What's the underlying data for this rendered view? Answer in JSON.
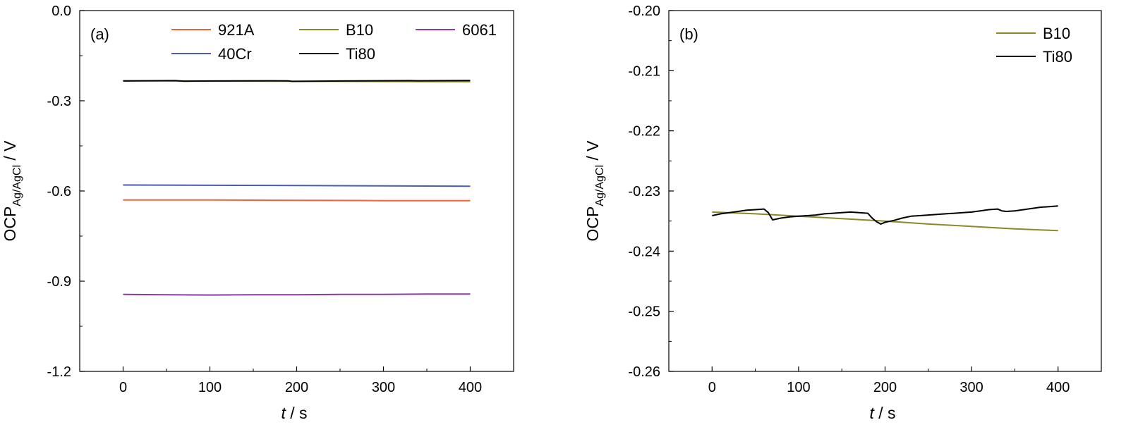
{
  "chart_data": [
    {
      "type": "line",
      "panel_label": "(a)",
      "xlabel_italic": "t",
      "xlabel_rest": " / s",
      "ylabel_main": "OCP",
      "ylabel_sub": "Ag/AgCl",
      "ylabel_rest": " / V",
      "xlim": [
        -50,
        450
      ],
      "ylim": [
        -1.2,
        0.0
      ],
      "xticks": [
        0,
        100,
        200,
        300,
        400
      ],
      "xtick_labels": [
        "0",
        "100",
        "200",
        "300",
        "400"
      ],
      "yticks": [
        0.0,
        -0.3,
        -0.6,
        -0.9,
        -1.2
      ],
      "ytick_labels": [
        "0.0",
        "-0.3",
        "-0.6",
        "-0.9",
        "-1.2"
      ],
      "grid": false,
      "legend_position": "top",
      "series": [
        {
          "name": "921A",
          "color": "#f0623a",
          "x": [
            0,
            100,
            200,
            300,
            400
          ],
          "y": [
            -0.63,
            -0.63,
            -0.631,
            -0.632,
            -0.632
          ]
        },
        {
          "name": "B10",
          "color": "#8a8a2a",
          "x": [
            0,
            100,
            200,
            300,
            400
          ],
          "y": [
            -0.2335,
            -0.2343,
            -0.235,
            -0.2358,
            -0.2366
          ]
        },
        {
          "name": "6061",
          "color": "#8c3ca0",
          "x": [
            0,
            50,
            100,
            150,
            200,
            250,
            300,
            350,
            400
          ],
          "y": [
            -0.944,
            -0.945,
            -0.946,
            -0.945,
            -0.945,
            -0.944,
            -0.944,
            -0.943,
            -0.943
          ]
        },
        {
          "name": "40Cr",
          "color": "#4a5cb0",
          "x": [
            0,
            100,
            200,
            300,
            400
          ],
          "y": [
            -0.58,
            -0.581,
            -0.582,
            -0.583,
            -0.584
          ]
        },
        {
          "name": "Ti80",
          "color": "#000000",
          "x": [
            0,
            60,
            70,
            100,
            170,
            190,
            195,
            250,
            330,
            340,
            400
          ],
          "y": [
            -0.2341,
            -0.233,
            -0.2349,
            -0.2342,
            -0.2335,
            -0.234,
            -0.2355,
            -0.2342,
            -0.233,
            -0.2334,
            -0.2325
          ]
        }
      ]
    },
    {
      "type": "line",
      "panel_label": "(b)",
      "xlabel_italic": "t",
      "xlabel_rest": " / s",
      "ylabel_main": "OCP",
      "ylabel_sub": "Ag/AgCl",
      "ylabel_rest": " / V",
      "xlim": [
        -50,
        450
      ],
      "ylim": [
        -0.26,
        -0.2
      ],
      "xticks": [
        0,
        100,
        200,
        300,
        400
      ],
      "xtick_labels": [
        "0",
        "100",
        "200",
        "300",
        "400"
      ],
      "yticks": [
        -0.2,
        -0.21,
        -0.22,
        -0.23,
        -0.24,
        -0.25,
        -0.26
      ],
      "ytick_labels": [
        "-0.20",
        "-0.21",
        "-0.22",
        "-0.23",
        "-0.24",
        "-0.25",
        "-0.26"
      ],
      "grid": false,
      "legend_position": "top-right",
      "series": [
        {
          "name": "B10",
          "color": "#8a8a2a",
          "x": [
            0,
            50,
            100,
            150,
            200,
            250,
            300,
            350,
            400
          ],
          "y": [
            -0.2335,
            -0.2338,
            -0.2342,
            -0.2346,
            -0.235,
            -0.2355,
            -0.2359,
            -0.2363,
            -0.2366
          ]
        },
        {
          "name": "Ti80",
          "color": "#000000",
          "x": [
            0,
            10,
            20,
            30,
            40,
            50,
            60,
            65,
            70,
            80,
            90,
            100,
            110,
            120,
            130,
            140,
            150,
            160,
            170,
            180,
            185,
            190,
            195,
            200,
            210,
            220,
            230,
            240,
            250,
            260,
            270,
            280,
            290,
            300,
            310,
            320,
            330,
            335,
            340,
            350,
            360,
            370,
            380,
            390,
            400
          ],
          "y": [
            -0.2341,
            -0.2338,
            -0.2336,
            -0.2334,
            -0.2332,
            -0.2331,
            -0.233,
            -0.2336,
            -0.2348,
            -0.2345,
            -0.2343,
            -0.2342,
            -0.2341,
            -0.234,
            -0.2338,
            -0.2337,
            -0.2336,
            -0.2335,
            -0.2336,
            -0.2337,
            -0.2345,
            -0.2351,
            -0.2355,
            -0.2352,
            -0.2349,
            -0.2345,
            -0.2342,
            -0.2341,
            -0.234,
            -0.2339,
            -0.2338,
            -0.2337,
            -0.2336,
            -0.2335,
            -0.2333,
            -0.2331,
            -0.233,
            -0.2333,
            -0.2334,
            -0.2333,
            -0.2331,
            -0.2329,
            -0.2327,
            -0.2326,
            -0.2325
          ]
        }
      ]
    }
  ]
}
